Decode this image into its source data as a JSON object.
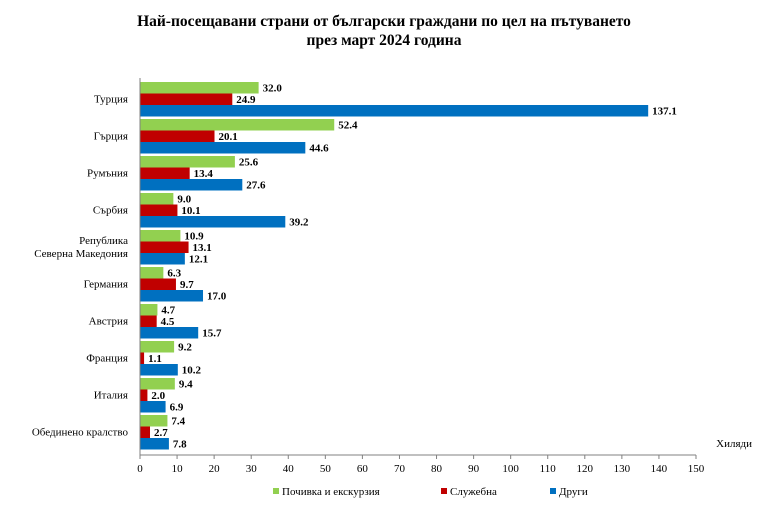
{
  "chart_data": {
    "type": "bar",
    "orientation": "horizontal",
    "title_line1": "Най-посещавани страни от български граждани по цел на пътуването",
    "title_line2": "през март 2024 година",
    "xlabel": "Хиляди",
    "xlim": [
      0,
      150
    ],
    "x_ticks": [
      0,
      10,
      20,
      30,
      40,
      50,
      60,
      70,
      80,
      90,
      100,
      110,
      120,
      130,
      140,
      150
    ],
    "grid": false,
    "legend_position": "bottom",
    "categories": [
      [
        "Турция"
      ],
      [
        "Гърция"
      ],
      [
        "Румъния"
      ],
      [
        "Сърбия"
      ],
      [
        "Република",
        "Северна Македония"
      ],
      [
        "Германия"
      ],
      [
        "Австрия"
      ],
      [
        "Франция"
      ],
      [
        "Италия"
      ],
      [
        "Обединено кралство"
      ]
    ],
    "series": [
      {
        "name": "Почивка и екскурзия",
        "color": "#92d050",
        "values": [
          32.0,
          52.4,
          25.6,
          9.0,
          10.9,
          6.3,
          4.7,
          9.2,
          9.4,
          7.4
        ],
        "labels": [
          "32.0",
          "52.4",
          "25.6",
          "9.0",
          "10.9",
          "6.3",
          "4.7",
          "9.2",
          "9.4",
          "7.4"
        ]
      },
      {
        "name": "Служебна",
        "color": "#c00000",
        "values": [
          24.9,
          20.1,
          13.4,
          10.1,
          13.1,
          9.7,
          4.5,
          1.1,
          2.0,
          2.7
        ],
        "labels": [
          "24.9",
          "20.1",
          "13.4",
          "10.1",
          "13.1",
          "9.7",
          "4.5",
          "1.1",
          "2.0",
          "2.7"
        ]
      },
      {
        "name": "Други",
        "color": "#0070c0",
        "values": [
          137.1,
          44.6,
          27.6,
          39.2,
          12.1,
          17.0,
          15.7,
          10.2,
          6.9,
          7.8
        ],
        "labels": [
          "137.1",
          "44.6",
          "27.6",
          "39.2",
          "12.1",
          "17.0",
          "15.7",
          "10.2",
          "6.9",
          "7.8"
        ]
      }
    ]
  }
}
